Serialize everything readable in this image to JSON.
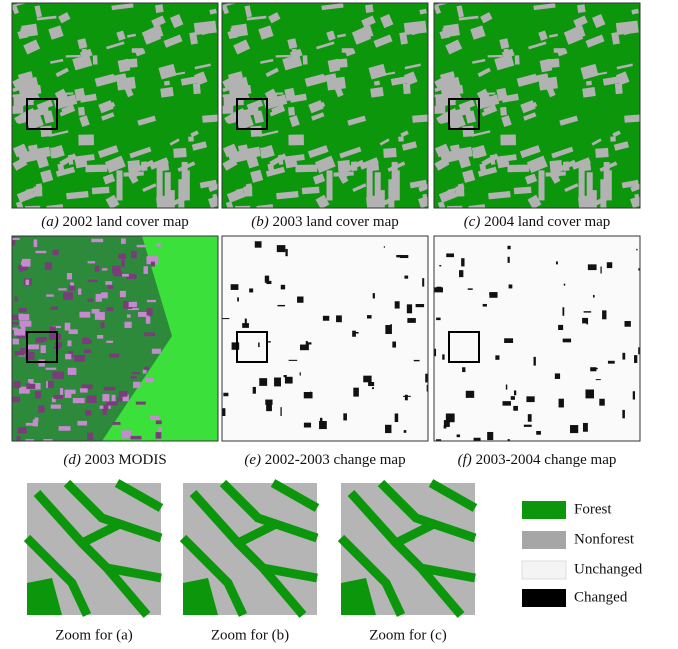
{
  "panels": [
    {
      "label": "(a)",
      "caption": "2002 land cover map"
    },
    {
      "label": "(b)",
      "caption": "2003 land cover map"
    },
    {
      "label": "(c)",
      "caption": "2004 land cover map"
    },
    {
      "label": "(d)",
      "caption": "2003 MODIS"
    },
    {
      "label": "(e)",
      "caption": "2002-2003 change map"
    },
    {
      "label": "(f)",
      "caption": "2003-2004 change map"
    }
  ],
  "zooms": [
    "Zoom for (a)",
    "Zoom for (b)",
    "Zoom for (c)"
  ],
  "legend": [
    "Forest",
    "Nonforest",
    "Unchanged",
    "Changed"
  ]
}
